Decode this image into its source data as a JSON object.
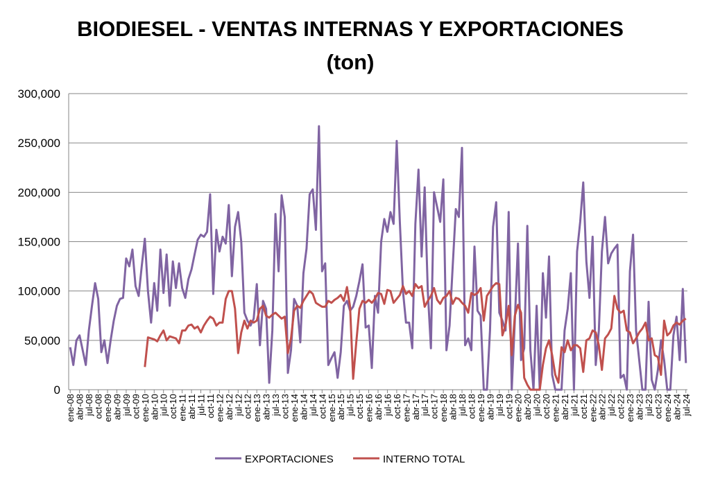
{
  "chart_data": {
    "type": "line",
    "title": [
      "BIODIESEL - VENTAS INTERNAS Y EXPORTACIONES",
      "(ton)"
    ],
    "categories": [
      "ene-08",
      null,
      null,
      "abr-08",
      null,
      null,
      "jul-08",
      null,
      null,
      "oct-08",
      null,
      null,
      "ene-09",
      null,
      null,
      "abr-09",
      null,
      null,
      "jul-09",
      null,
      null,
      "oct-09",
      null,
      null,
      "ene-10",
      null,
      null,
      "abr-10",
      null,
      null,
      "jul-10",
      null,
      null,
      "oct-10",
      null,
      null,
      "ene-11",
      null,
      null,
      "abr-11",
      null,
      null,
      "jul-11",
      null,
      null,
      "oct-11",
      null,
      null,
      "ene-12",
      null,
      null,
      "abr-12",
      null,
      null,
      "jul-12",
      null,
      null,
      "oct-12",
      null,
      null,
      "ene-13",
      null,
      null,
      "abr-13",
      null,
      null,
      "jul-13",
      null,
      null,
      "oct-13",
      null,
      null,
      "ene-14",
      null,
      null,
      "abr-14",
      null,
      null,
      "jul-14",
      null,
      null,
      "oct-14",
      null,
      null,
      "ene-15",
      null,
      null,
      "abr-15",
      null,
      null,
      "jul-15",
      null,
      null,
      "oct-15",
      null,
      null,
      "ene-16",
      null,
      null,
      "abr-16",
      null,
      null,
      "jul-16",
      null,
      null,
      "oct-16",
      null,
      null,
      "ene-17",
      null,
      null,
      "abr-17",
      null,
      null,
      "jul-17",
      null,
      null,
      "oct-17",
      null,
      null,
      "ene-18",
      null,
      null,
      "abr-18",
      null,
      null,
      "jul-18",
      null,
      null,
      "oct-18",
      null,
      null,
      "ene-19",
      null,
      null,
      "abr-19",
      null,
      null,
      "jul-19",
      null,
      null,
      "oct-19",
      null,
      null,
      "ene-20",
      null,
      null,
      "abr-20",
      null,
      null,
      "jul-20",
      null,
      null,
      "oct-20",
      null,
      null,
      "ene-21",
      null,
      null,
      "abr-21",
      null,
      null,
      "jul-21",
      null,
      null,
      "oct-21",
      null,
      null,
      "ene-22",
      null,
      null,
      "abr-22",
      null,
      null,
      "jul-22",
      null,
      null,
      "oct-22",
      null,
      null,
      "ene-23",
      null,
      null,
      "abr-23",
      null,
      null,
      "jul-23",
      null,
      null,
      "oct-23",
      null,
      null,
      "ene-24",
      null,
      null,
      "abr-24",
      null,
      null,
      "jul-24"
    ],
    "series": [
      {
        "name": "EXPORTACIONES",
        "color": "#8064a2",
        "values": [
          43000,
          25000,
          50000,
          55000,
          40000,
          25000,
          60000,
          85000,
          108000,
          92000,
          38000,
          50000,
          27000,
          50000,
          70000,
          85000,
          92000,
          93000,
          133000,
          125000,
          142000,
          105000,
          95000,
          125000,
          153000,
          100000,
          68000,
          108000,
          80000,
          142000,
          98000,
          137000,
          85000,
          130000,
          103000,
          128000,
          103000,
          93000,
          112000,
          122000,
          137000,
          152000,
          157000,
          155000,
          160000,
          198000,
          97000,
          162000,
          140000,
          155000,
          148000,
          187000,
          115000,
          165000,
          180000,
          150000,
          78000,
          70000,
          65000,
          72000,
          107000,
          45000,
          90000,
          82000,
          7000,
          60000,
          178000,
          120000,
          197000,
          175000,
          17000,
          40000,
          92000,
          85000,
          48000,
          118000,
          143000,
          198000,
          203000,
          162000,
          267000,
          120000,
          128000,
          25000,
          32000,
          38000,
          12000,
          38000,
          85000,
          90000,
          80000,
          84000,
          95000,
          110000,
          127000,
          63000,
          65000,
          22000,
          95000,
          78000,
          150000,
          173000,
          160000,
          180000,
          168000,
          252000,
          170000,
          100000,
          68000,
          68000,
          42000,
          168000,
          223000,
          135000,
          205000,
          100000,
          42000,
          200000,
          185000,
          170000,
          213000,
          40000,
          65000,
          125000,
          183000,
          175000,
          245000,
          45000,
          52000,
          40000,
          145000,
          80000,
          75000,
          0,
          0,
          60000,
          165000,
          190000,
          78000,
          70000,
          60000,
          180000,
          0,
          70000,
          148000,
          30000,
          42000,
          166000,
          40000,
          0,
          85000,
          0,
          118000,
          73000,
          135000,
          15000,
          0,
          0,
          0,
          60000,
          82000,
          118000,
          0,
          140000,
          170000,
          210000,
          130000,
          93000,
          155000,
          25000,
          60000,
          140000,
          175000,
          128000,
          138000,
          143000,
          147000,
          12000,
          15000,
          0,
          120000,
          157000,
          60000,
          30000,
          0,
          0,
          89000,
          10000,
          0,
          20000,
          50000,
          30000,
          0,
          0,
          55000,
          74000,
          30000,
          102000,
          27000
        ]
      },
      {
        "name": "INTERNO TOTAL",
        "color": "#c0504d",
        "values": [
          null,
          null,
          null,
          null,
          null,
          null,
          null,
          null,
          null,
          null,
          null,
          null,
          null,
          null,
          null,
          null,
          null,
          null,
          null,
          null,
          null,
          null,
          null,
          null,
          23000,
          53000,
          52000,
          51000,
          49000,
          55000,
          60000,
          50000,
          54000,
          53000,
          52000,
          47000,
          60000,
          60000,
          65000,
          66000,
          62000,
          64000,
          58000,
          65000,
          70000,
          74000,
          72000,
          65000,
          68000,
          68000,
          92000,
          100000,
          100000,
          82000,
          37000,
          58000,
          70000,
          62000,
          70000,
          68000,
          70000,
          82000,
          85000,
          75000,
          73000,
          76000,
          78000,
          75000,
          72000,
          74000,
          37000,
          52000,
          80000,
          85000,
          83000,
          90000,
          95000,
          100000,
          97000,
          88000,
          86000,
          84000,
          84000,
          90000,
          88000,
          91000,
          93000,
          96000,
          90000,
          104000,
          84000,
          11000,
          48000,
          82000,
          90000,
          88000,
          91000,
          88000,
          92000,
          98000,
          97000,
          87000,
          101000,
          100000,
          88000,
          92000,
          96000,
          105000,
          97000,
          100000,
          95000,
          107000,
          103000,
          105000,
          84000,
          90000,
          95000,
          103000,
          91000,
          87000,
          93000,
          95000,
          100000,
          87000,
          93000,
          92000,
          88000,
          85000,
          78000,
          98000,
          96000,
          98000,
          103000,
          70000,
          95000,
          100000,
          105000,
          108000,
          107000,
          55000,
          65000,
          85000,
          35000,
          75000,
          86000,
          78000,
          12000,
          5000,
          0,
          0,
          0,
          0,
          25000,
          42000,
          50000,
          35000,
          15000,
          7000,
          43000,
          38000,
          50000,
          40000,
          45000,
          45000,
          42000,
          18000,
          50000,
          52000,
          60000,
          58000,
          45000,
          20000,
          52000,
          56000,
          62000,
          95000,
          82000,
          78000,
          80000,
          60000,
          58000,
          47000,
          52000,
          58000,
          62000,
          68000,
          50000,
          52000,
          35000,
          33000,
          15000,
          70000,
          55000,
          58000,
          65000,
          68000,
          66000,
          70000,
          72000
        ]
      }
    ],
    "ylim": [
      0,
      300000
    ],
    "yticks": [
      0,
      {
        "value": 50000,
        "label": "50,000"
      },
      {
        "value": 100000,
        "label": "100,000"
      },
      {
        "value": 150000,
        "label": "150,000"
      },
      {
        "value": 200000,
        "label": "200,000"
      },
      {
        "value": 250000,
        "label": "250,000"
      },
      {
        "value": 300000,
        "label": "300,000"
      }
    ],
    "grid": true,
    "legend": "bottom"
  }
}
